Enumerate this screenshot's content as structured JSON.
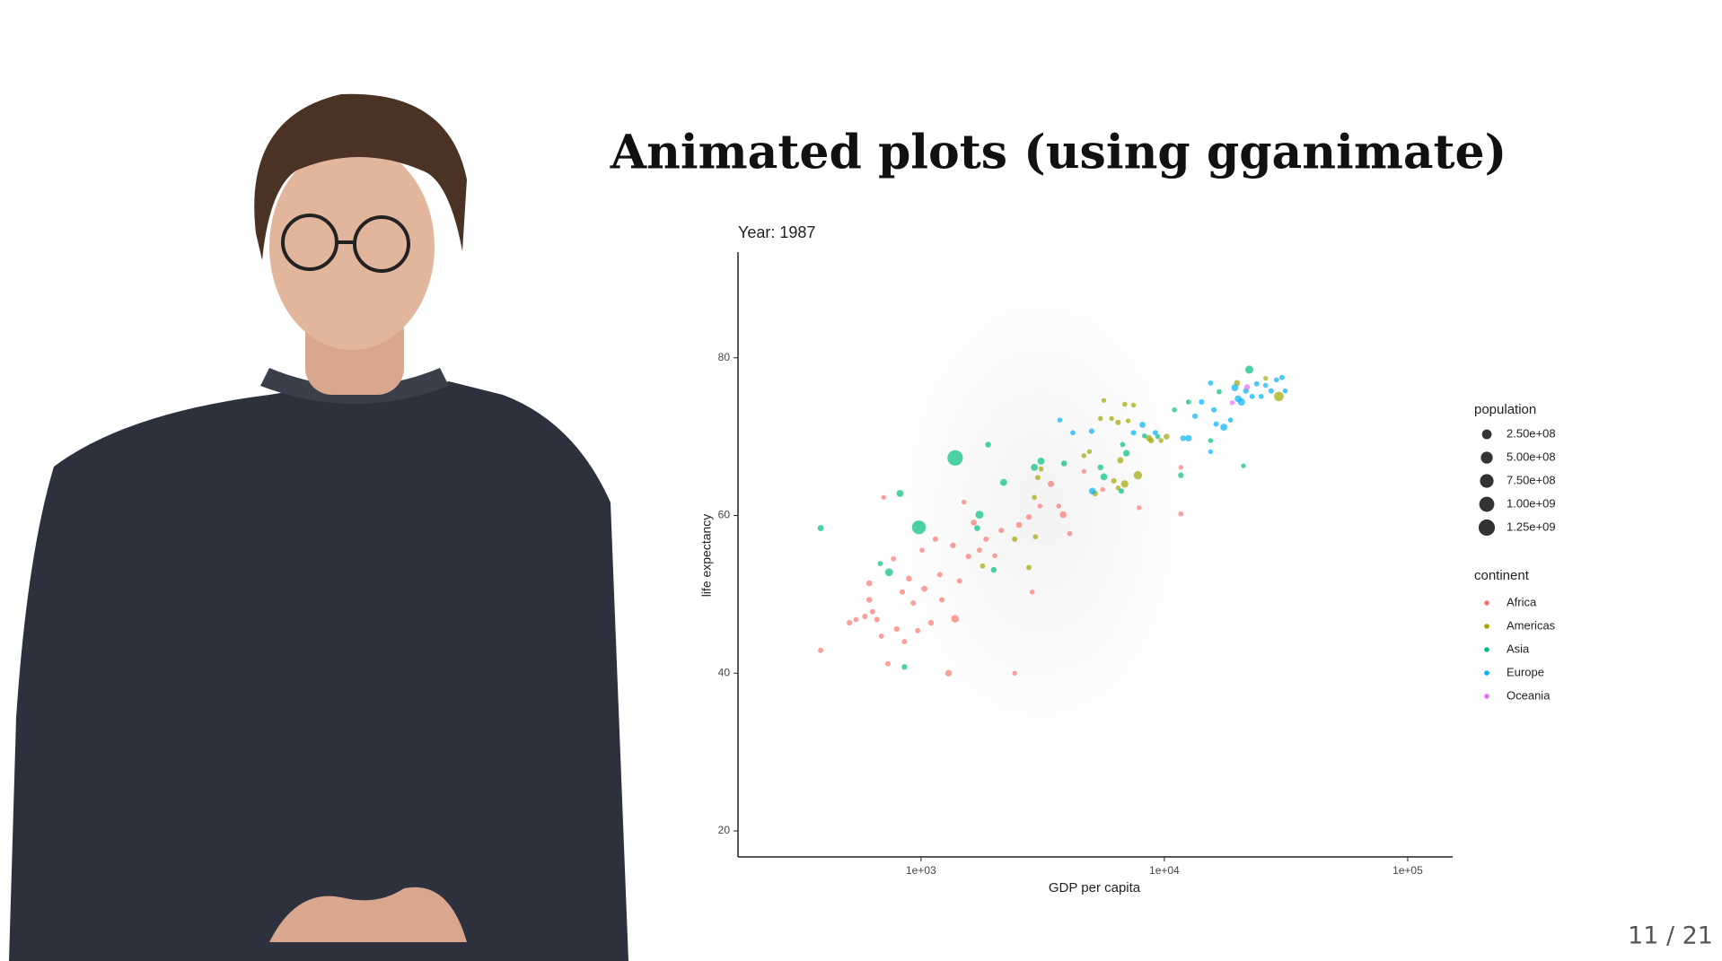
{
  "slide": {
    "title": "Animated plots (using gganimate)",
    "page": "11 / 21"
  },
  "chart_data": {
    "type": "scatter",
    "title": "Year: 1987",
    "x_label": "GDP per capita",
    "y_label": "life expectancy",
    "x_log": true,
    "xlim": [
      177,
      153000
    ],
    "ylim": [
      16.7,
      93.4
    ],
    "xticks": [
      {
        "value": 1000,
        "label": "1e+03"
      },
      {
        "value": 10000,
        "label": "1e+04"
      },
      {
        "value": 100000,
        "label": "1e+05"
      }
    ],
    "yticks": [
      20,
      40,
      60,
      80
    ],
    "grid": false,
    "legend_position": "right",
    "size_legend": {
      "title": "population",
      "ticks": [
        {
          "value": 250000000,
          "label": "2.50e+08"
        },
        {
          "value": 500000000,
          "label": "5.00e+08"
        },
        {
          "value": 750000000,
          "label": "7.50e+08"
        },
        {
          "value": 1000000000,
          "label": "1.00e+09"
        },
        {
          "value": 1250000000,
          "label": "1.25e+09"
        }
      ],
      "color": "#333333"
    },
    "color_legend_title": "continent",
    "series": [
      {
        "name": "Africa",
        "color": "#F8766D",
        "x": [
          387,
          508,
          541,
          588,
          613,
          632,
          659,
          687,
          613,
          731,
          771,
          795,
          838,
          855,
          892,
          929,
          969,
          1010,
          1032,
          1099,
          1146,
          1194,
          1219,
          1298,
          1353,
          1381,
          1440,
          1501,
          1566,
          1648,
          1738,
          1849,
          2010,
          2138,
          2426,
          2529,
          2775,
          2864,
          3081,
          3420,
          3680,
          3837,
          4083,
          4674,
          5583,
          7870,
          11690,
          11690,
          702
        ],
        "values": [
          42.9,
          46.4,
          46.8,
          47.2,
          49.3,
          47.8,
          46.8,
          44.7,
          51.4,
          41.2,
          54.5,
          45.6,
          50.3,
          44.0,
          52.0,
          48.9,
          45.4,
          55.6,
          50.7,
          46.4,
          57.0,
          52.5,
          49.3,
          40.0,
          56.2,
          46.9,
          51.7,
          61.7,
          54.8,
          59.1,
          55.6,
          57.0,
          54.9,
          58.1,
          40.0,
          58.8,
          59.8,
          50.3,
          61.2,
          64.0,
          61.2,
          60.1,
          57.7,
          65.6,
          63.3,
          61.0,
          60.2,
          66.1,
          62.3
        ],
        "sizes": [
          8000000,
          12000000,
          6000000,
          9000000,
          15000000,
          7000000,
          11000000,
          4000000,
          20000000,
          7000000,
          5000000,
          13000000,
          9000000,
          8000000,
          18000000,
          10000000,
          6000000,
          3000000,
          25000000,
          14000000,
          10000000,
          8000000,
          9000000,
          43000000,
          12000000,
          93000000,
          7000000,
          2000000,
          11000000,
          23000000,
          5000000,
          9000000,
          3000000,
          8000000,
          1000000,
          22000000,
          13000000,
          2000000,
          1000000,
          34000000,
          3000000,
          52000000,
          4000000,
          1000000,
          1000000,
          1000000,
          4000000,
          1000000,
          1000000
        ]
      },
      {
        "name": "Americas",
        "color": "#A3A500",
        "x": [
          3018,
          3112,
          2924,
          2955,
          2775,
          2426,
          5188,
          4674,
          4920,
          5465,
          5640,
          6067,
          6457,
          6871,
          7096,
          7470,
          7784,
          6592,
          6194,
          6871,
          8650,
          8828,
          9690,
          10210,
          19890,
          26070,
          29550,
          1791,
          6457
        ],
        "values": [
          64.8,
          65.9,
          62.3,
          57.3,
          53.4,
          57.0,
          62.8,
          67.6,
          68.1,
          72.3,
          74.6,
          72.3,
          71.8,
          74.1,
          72.0,
          74.0,
          65.1,
          67.0,
          64.4,
          64.0,
          69.8,
          69.5,
          69.5,
          70.0,
          76.8,
          77.4,
          75.1,
          53.6,
          63.5
        ],
        "sizes": [
          8000000,
          5000000,
          4000000,
          6000000,
          7000000,
          9000000,
          20000000,
          3000000,
          2000000,
          3000000,
          1000000,
          2000000,
          12000000,
          3000000,
          1000000,
          2000000,
          142000000,
          30000000,
          9000000,
          80000000,
          31000000,
          12000000,
          3000000,
          18000000,
          26000000,
          1000000,
          243000000,
          6000000,
          2000000
        ]
      },
      {
        "name": "Asia",
        "color": "#00BF7D",
        "x": [
          387,
          680,
          739,
          820,
          855,
          980,
          1381,
          1738,
          1702,
          1888,
          2184,
          1990,
          2924,
          3112,
          5465,
          5640,
          6655,
          6981,
          8290,
          9396,
          10990,
          11690,
          12560,
          15490,
          16800,
          21140,
          22330,
          6735,
          3873
        ],
        "values": [
          58.4,
          53.9,
          52.8,
          62.8,
          40.8,
          58.5,
          67.3,
          60.1,
          58.4,
          69.0,
          64.2,
          53.1,
          66.1,
          66.9,
          66.1,
          64.9,
          63.1,
          67.9,
          70.1,
          70.0,
          73.4,
          65.1,
          74.4,
          69.5,
          75.7,
          66.3,
          78.5,
          69.0,
          66.6
        ],
        "sizes": [
          30000000,
          5000000,
          104000000,
          62000000,
          14000000,
          788000000,
          1084000000,
          105000000,
          20000000,
          17000000,
          56000000,
          17000000,
          60000000,
          60000000,
          16000000,
          54000000,
          10000000,
          42000000,
          3000000,
          2000000,
          3000000,
          14000000,
          4000000,
          2000000,
          5000000,
          1000000,
          122000000,
          6000000,
          20000000
        ]
      },
      {
        "name": "Europe",
        "color": "#00B0F6",
        "x": [
          3716,
          4209,
          5025,
          5060,
          7470,
          9188,
          8131,
          11940,
          12560,
          13360,
          14220,
          15490,
          15970,
          16320,
          17550,
          18700,
          19470,
          20100,
          20730,
          21620,
          22950,
          23950,
          24990,
          26070,
          27450,
          28900,
          30430,
          31380,
          15490
        ],
        "values": [
          72.1,
          70.5,
          70.7,
          63.1,
          70.5,
          70.5,
          71.5,
          69.8,
          69.8,
          72.6,
          74.4,
          76.8,
          73.4,
          71.6,
          71.2,
          72.1,
          76.2,
          74.8,
          74.4,
          75.8,
          75.1,
          76.7,
          75.1,
          76.5,
          75.8,
          77.2,
          77.5,
          75.8,
          68.1
        ],
        "sizes": [
          3000000,
          4000000,
          10000000,
          52000000,
          9000000,
          10000000,
          23000000,
          15000000,
          38000000,
          10000000,
          10000000,
          5000000,
          10000000,
          8000000,
          57000000,
          4000000,
          57000000,
          56000000,
          77000000,
          15000000,
          8000000,
          7000000,
          5000000,
          4000000,
          10000000,
          6000000,
          6000000,
          4000000,
          1000000
        ]
      },
      {
        "name": "Oceania",
        "color": "#E76BF3",
        "x": [
          21888,
          19007
        ],
        "values": [
          76.3,
          74.3
        ],
        "sizes": [
          16000000,
          3000000
        ]
      }
    ]
  }
}
